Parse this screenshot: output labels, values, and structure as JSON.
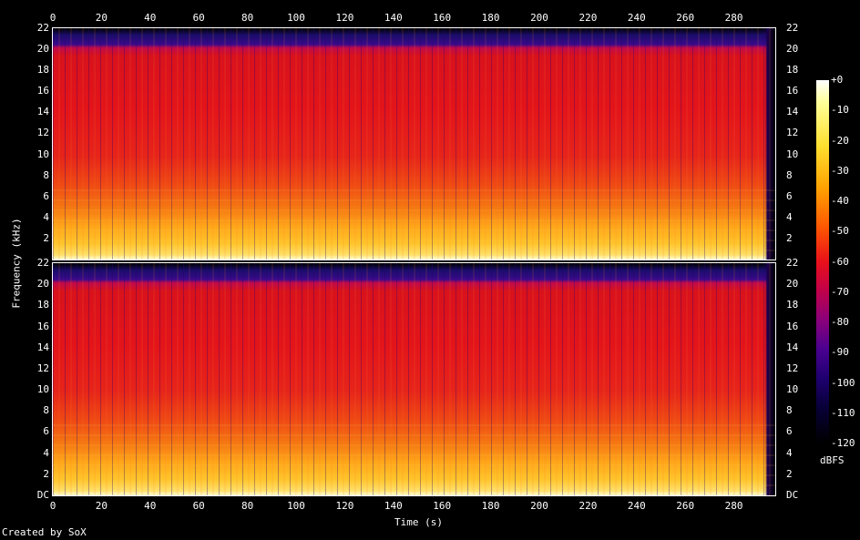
{
  "chart_data": {
    "type": "heatmap",
    "description_kind": "audio spectrogram, two channels",
    "xlabel": "Time (s)",
    "ylabel": "Frequency (kHz)",
    "xlim": [
      0,
      297
    ],
    "ylim": [
      0,
      22
    ],
    "x_ticks": [
      "0",
      "20",
      "40",
      "60",
      "80",
      "100",
      "120",
      "140",
      "160",
      "180",
      "200",
      "220",
      "240",
      "260",
      "280"
    ],
    "y_ticks_top": [
      "22",
      "20",
      "18",
      "16",
      "14",
      "12",
      "10",
      "8",
      "6",
      "4",
      "2"
    ],
    "y_ticks_bottom": [
      "22",
      "20",
      "18",
      "16",
      "14",
      "12",
      "10",
      "8",
      "6",
      "4",
      "2",
      "DC"
    ],
    "colorbar": {
      "label": "dBFS",
      "ticks": [
        "+0",
        "-10",
        "-20",
        "-30",
        "-40",
        "-50",
        "-60",
        "-70",
        "-80",
        "-90",
        "-100",
        "-110",
        "-120"
      ],
      "range": [
        -120,
        0
      ]
    },
    "channels": 2,
    "footer": "Created by SoX"
  },
  "colors": {
    "background": "#000000",
    "text": "#ffffff"
  }
}
